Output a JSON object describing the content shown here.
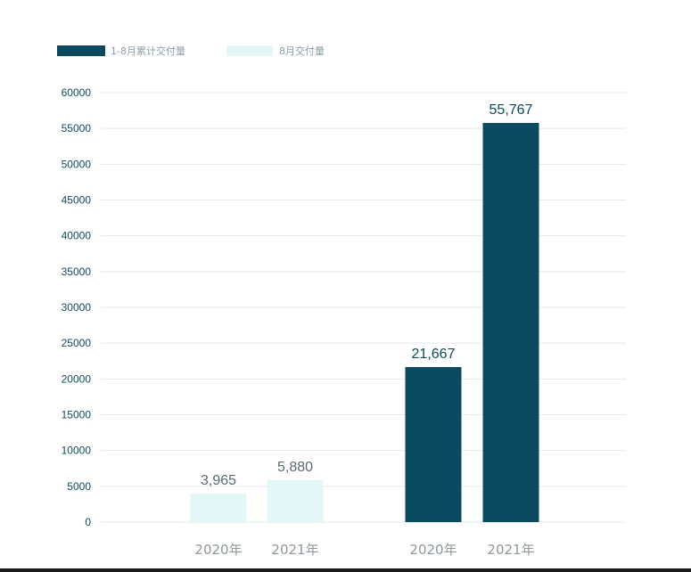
{
  "chart_data": {
    "type": "bar",
    "categories": [
      "2020年",
      "2021年",
      "2020年",
      "2021年"
    ],
    "series": [
      {
        "name": "8月交付量",
        "values": [
          3965,
          5880,
          null,
          null
        ],
        "labels": [
          "3,965",
          "5,880",
          "",
          ""
        ]
      },
      {
        "name": "1-8月累计交付量",
        "values": [
          null,
          null,
          21667,
          55767
        ],
        "labels": [
          "",
          "",
          "21,667",
          "55,767"
        ]
      }
    ],
    "legend_order": [
      "1-8月累计交付量",
      "8月交付量"
    ],
    "ylim": [
      0,
      60000
    ],
    "yticks": [
      "0",
      "5000",
      "10000",
      "15000",
      "20000",
      "25000",
      "30000",
      "35000",
      "40000",
      "45000",
      "50000",
      "55000",
      "60000"
    ],
    "grid": true,
    "legend_position": "top-left",
    "title": "",
    "xlabel": "",
    "ylabel": "",
    "colors": {
      "8月交付量": "#e4f7f7",
      "1-8月累计交付量": "#0b4a5e",
      "grid": "#e3e8ea",
      "label_light": "#5a6a70",
      "label_dark": "#0b4a5e"
    }
  }
}
